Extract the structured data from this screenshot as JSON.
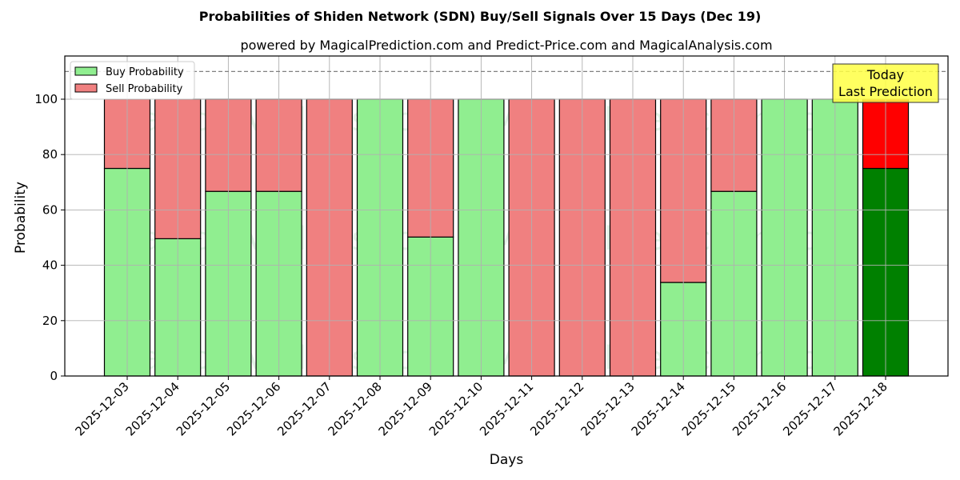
{
  "chart_data": {
    "type": "bar",
    "stacked": true,
    "title": "Probabilities of Shiden Network (SDN) Buy/Sell Signals Over 15 Days (Dec 19)",
    "subtitle": "powered by MagicalPrediction.com and Predict-Price.com and MagicalAnalysis.com",
    "xlabel": "Days",
    "ylabel": "Probability",
    "ylim": [
      0,
      115
    ],
    "yticks": [
      0,
      20,
      40,
      60,
      80,
      100
    ],
    "grid": true,
    "legend_position": "upper left",
    "reference_line": {
      "y": 110,
      "style": "dashed",
      "color": "#808080"
    },
    "categories": [
      "2025-12-03",
      "2025-12-04",
      "2025-12-05",
      "2025-12-06",
      "2025-12-07",
      "2025-12-08",
      "2025-12-09",
      "2025-12-10",
      "2025-12-11",
      "2025-12-12",
      "2025-12-13",
      "2025-12-14",
      "2025-12-15",
      "2025-12-16",
      "2025-12-17",
      "2025-12-18"
    ],
    "series": [
      {
        "name": "Buy Probability",
        "color": "#90ee90",
        "highlight_color": "#008000",
        "values": [
          75,
          49.6,
          66.7,
          66.7,
          0,
          100,
          50.2,
          100,
          0,
          0,
          0,
          33.8,
          66.7,
          100,
          100,
          75
        ]
      },
      {
        "name": "Sell Probability",
        "color": "#f08080",
        "highlight_color": "#ff0000",
        "values": [
          25,
          50.4,
          33.3,
          33.3,
          100,
          0,
          49.8,
          0,
          100,
          100,
          100,
          66.2,
          33.3,
          0,
          0,
          25
        ]
      }
    ],
    "highlight_index": 15,
    "annotation": {
      "lines": [
        "Today",
        "Last Prediction"
      ],
      "bg_color": "#ffff44",
      "category": "2025-12-18"
    },
    "watermarks": [
      "MagicalAnalysis.com",
      "MagicalPrediction.com"
    ]
  },
  "legend": {
    "buy_label": "Buy Probability",
    "sell_label": "Sell Probability"
  }
}
